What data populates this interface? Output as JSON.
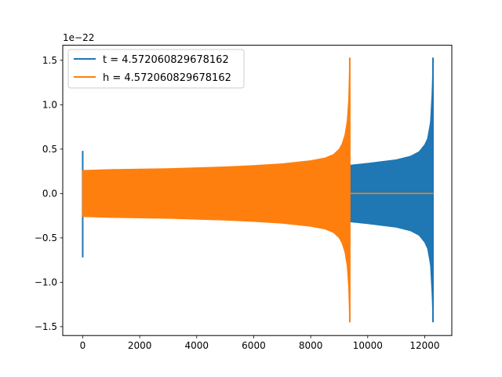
{
  "chart_data": {
    "type": "line",
    "title": "",
    "xlabel": "",
    "ylabel": "",
    "offset_text": "1e−22",
    "xlim": [
      -700,
      12950
    ],
    "ylim": [
      -1.6,
      1.67
    ],
    "xticks": [
      0,
      2000,
      4000,
      6000,
      8000,
      10000,
      12000
    ],
    "yticks": [
      -1.5,
      -1.0,
      -0.5,
      0.0,
      0.5,
      1.0,
      1.5
    ],
    "xtick_labels": [
      "0",
      "2000",
      "4000",
      "6000",
      "8000",
      "10000",
      "12000"
    ],
    "ytick_labels": [
      "−1.5",
      "−1.0",
      "−0.5",
      "0.0",
      "0.5",
      "1.0",
      "1.5"
    ],
    "grid": false,
    "legend_position": "upper-left",
    "series": [
      {
        "name": "t = 4.572060829678162",
        "color": "#1f77b4",
        "x_range": [
          0,
          12300
        ],
        "initial_spike": {
          "x": 0,
          "max": 0.48,
          "min": -0.72
        },
        "envelope_x": [
          0,
          1000,
          2000,
          3000,
          4000,
          5000,
          6000,
          7000,
          8000,
          9000,
          9400,
          10000,
          11000,
          11500,
          11800,
          12000,
          12100,
          12200,
          12260,
          12290
        ],
        "envelope_upper": [
          0.24,
          0.245,
          0.25,
          0.255,
          0.26,
          0.265,
          0.27,
          0.28,
          0.29,
          0.31,
          0.32,
          0.34,
          0.38,
          0.42,
          0.47,
          0.55,
          0.62,
          0.8,
          1.15,
          1.53
        ],
        "envelope_lower": [
          -0.24,
          -0.245,
          -0.25,
          -0.255,
          -0.26,
          -0.265,
          -0.27,
          -0.28,
          -0.29,
          -0.31,
          -0.32,
          -0.34,
          -0.38,
          -0.42,
          -0.47,
          -0.55,
          -0.62,
          -0.8,
          -1.15,
          -1.45
        ]
      },
      {
        "name": "h = 4.572060829678162",
        "color": "#ff7f0e",
        "x_range": [
          0,
          9400
        ],
        "envelope_x": [
          0,
          1000,
          2000,
          3000,
          4000,
          5000,
          6000,
          7000,
          8000,
          8500,
          8800,
          9000,
          9100,
          9200,
          9280,
          9330,
          9370
        ],
        "envelope_upper": [
          0.26,
          0.27,
          0.275,
          0.28,
          0.29,
          0.3,
          0.315,
          0.335,
          0.37,
          0.4,
          0.44,
          0.5,
          0.56,
          0.66,
          0.82,
          1.05,
          1.53
        ],
        "envelope_lower": [
          -0.26,
          -0.27,
          -0.275,
          -0.28,
          -0.29,
          -0.3,
          -0.315,
          -0.335,
          -0.37,
          -0.4,
          -0.44,
          -0.5,
          -0.56,
          -0.66,
          -0.82,
          -1.05,
          -1.45
        ],
        "flat_after": {
          "from": 9400,
          "to": 12300,
          "value": 0.0
        }
      }
    ]
  }
}
